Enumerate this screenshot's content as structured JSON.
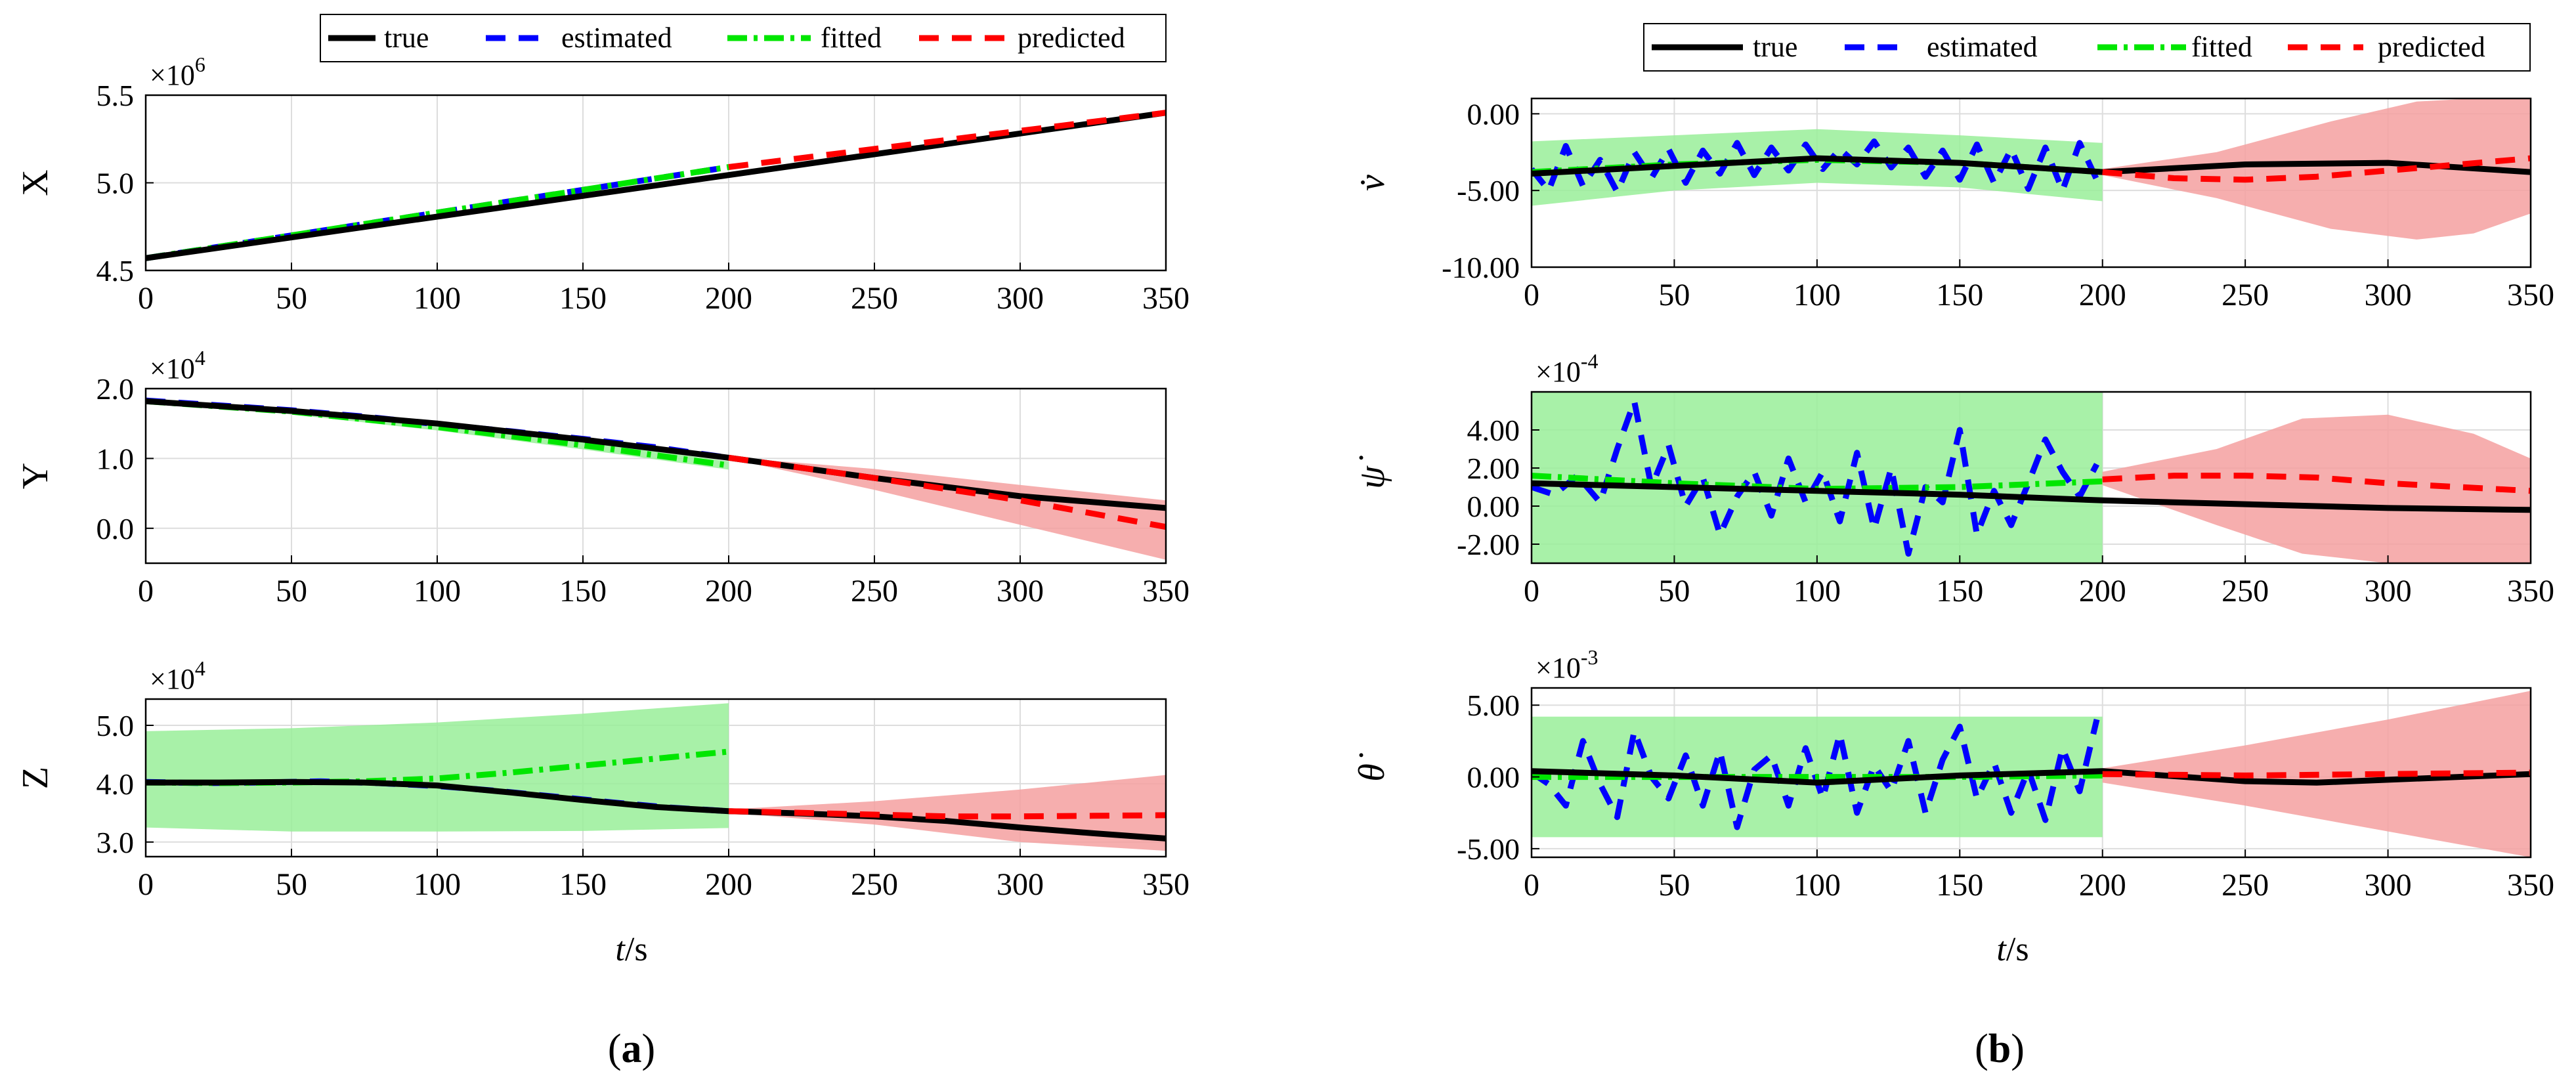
{
  "colors": {
    "true": "#000000",
    "estimated": "#0000ff",
    "fitted": "#00e600",
    "predicted": "#ff0000",
    "fitted_band": "#99ee99",
    "predicted_band": "#f5a0a0",
    "grid": "#dddddd"
  },
  "legend": {
    "true": "true",
    "estimated": "estimated",
    "fitted": "fitted",
    "predicted": "predicted"
  },
  "panel_labels": {
    "a": "a",
    "b": "b"
  },
  "xlabel_italic": "t",
  "xlabel_unit": "/s",
  "chart_data": [
    {
      "type": "line",
      "panel": "a",
      "ylabel": "X",
      "exponent_base": "×10",
      "exponent": "6",
      "xlim": [
        0,
        350
      ],
      "ylim": [
        4.5,
        5.5
      ],
      "xticks": [
        0,
        50,
        100,
        150,
        200,
        250,
        300,
        350
      ],
      "yticks": [
        4.5,
        5.0,
        5.5
      ],
      "ytick_labels": [
        "4.5",
        "5.0",
        "5.5"
      ],
      "series": [
        {
          "name": "true",
          "x": [
            0,
            350
          ],
          "y": [
            4.57,
            5.4
          ]
        },
        {
          "name": "estimated",
          "x": [
            0,
            200
          ],
          "y": [
            4.57,
            5.09
          ]
        },
        {
          "name": "fitted",
          "x": [
            0,
            200
          ],
          "y": [
            4.57,
            5.09
          ]
        },
        {
          "name": "predicted",
          "x": [
            200,
            350
          ],
          "y": [
            5.09,
            5.4
          ]
        }
      ]
    },
    {
      "type": "line",
      "panel": "a",
      "ylabel": "Y",
      "exponent_base": "×10",
      "exponent": "4",
      "xlim": [
        0,
        350
      ],
      "ylim": [
        -0.5,
        2.0
      ],
      "xticks": [
        0,
        50,
        100,
        150,
        200,
        250,
        300,
        350
      ],
      "yticks": [
        0.0,
        1.0,
        2.0
      ],
      "ytick_labels": [
        "0.0",
        "1.0",
        "2.0"
      ],
      "series": [
        {
          "name": "true",
          "x": [
            0,
            50,
            100,
            150,
            200,
            250,
            300,
            350
          ],
          "y": [
            1.82,
            1.68,
            1.5,
            1.27,
            1.01,
            0.72,
            0.46,
            0.29
          ]
        },
        {
          "name": "estimated",
          "x": [
            0,
            25,
            50,
            75,
            100,
            125,
            150,
            175,
            200
          ],
          "y": [
            1.83,
            1.76,
            1.69,
            1.6,
            1.49,
            1.39,
            1.28,
            1.16,
            1.01
          ]
        },
        {
          "name": "fitted",
          "x": [
            0,
            50,
            100,
            150,
            200
          ],
          "y": [
            1.82,
            1.67,
            1.45,
            1.19,
            0.9
          ]
        },
        {
          "name": "predicted",
          "x": [
            200,
            250,
            300,
            350
          ],
          "y": [
            1.01,
            0.72,
            0.4,
            0.02
          ]
        }
      ],
      "bands": [
        {
          "name": "fitted",
          "x": [
            0,
            50,
            100,
            150,
            200
          ],
          "lower": [
            1.8,
            1.63,
            1.4,
            1.13,
            0.84
          ],
          "upper": [
            1.85,
            1.71,
            1.5,
            1.25,
            0.96
          ]
        },
        {
          "name": "predicted",
          "x": [
            200,
            250,
            300,
            350
          ],
          "lower": [
            1.0,
            0.55,
            0.05,
            -0.45
          ],
          "upper": [
            1.02,
            0.85,
            0.62,
            0.4
          ]
        }
      ]
    },
    {
      "type": "line",
      "panel": "a",
      "ylabel": "Z",
      "exponent_base": "×10",
      "exponent": "4",
      "xlim": [
        0,
        350
      ],
      "ylim": [
        2.75,
        5.45
      ],
      "xticks": [
        0,
        50,
        100,
        150,
        200,
        250,
        300,
        350
      ],
      "yticks": [
        3.0,
        4.0,
        5.0
      ],
      "ytick_labels": [
        "3.0",
        "4.0",
        "5.0"
      ],
      "series": [
        {
          "name": "true",
          "x": [
            0,
            25,
            50,
            75,
            100,
            125,
            150,
            175,
            200,
            225,
            250,
            275,
            300,
            325,
            350
          ],
          "y": [
            4.02,
            4.02,
            4.03,
            4.02,
            3.97,
            3.85,
            3.72,
            3.6,
            3.53,
            3.49,
            3.44,
            3.36,
            3.25,
            3.15,
            3.06
          ]
        },
        {
          "name": "estimated",
          "x": [
            0,
            20,
            40,
            60,
            80,
            100,
            120,
            140,
            160,
            180,
            200
          ],
          "y": [
            4.03,
            4.01,
            4.02,
            4.04,
            4.01,
            3.96,
            3.88,
            3.78,
            3.68,
            3.59,
            3.53
          ]
        },
        {
          "name": "fitted",
          "x": [
            0,
            25,
            50,
            75,
            100,
            125,
            150,
            175,
            200
          ],
          "y": [
            4.02,
            4.01,
            4.02,
            4.04,
            4.09,
            4.19,
            4.31,
            4.43,
            4.55
          ]
        },
        {
          "name": "predicted",
          "x": [
            200,
            225,
            250,
            275,
            300,
            325,
            350
          ],
          "y": [
            3.53,
            3.5,
            3.47,
            3.44,
            3.44,
            3.45,
            3.46
          ]
        }
      ],
      "bands": [
        {
          "name": "fitted",
          "x": [
            0,
            50,
            100,
            150,
            200
          ],
          "lower": [
            3.25,
            3.18,
            3.18,
            3.19,
            3.24
          ],
          "upper": [
            4.9,
            4.95,
            5.05,
            5.2,
            5.38
          ]
        },
        {
          "name": "predicted",
          "x": [
            200,
            250,
            300,
            350
          ],
          "lower": [
            3.5,
            3.3,
            3.0,
            2.85
          ],
          "upper": [
            3.56,
            3.7,
            3.9,
            4.15
          ]
        }
      ]
    },
    {
      "type": "line",
      "panel": "b",
      "ylabel": "v̇",
      "xlim": [
        0,
        350
      ],
      "ylim": [
        -10.0,
        1.0
      ],
      "xticks": [
        0,
        50,
        100,
        150,
        200,
        250,
        300,
        350
      ],
      "yticks": [
        -10.0,
        -5.0,
        0.0
      ],
      "ytick_labels": [
        "-10.00",
        "-5.00",
        "0.00"
      ],
      "series": [
        {
          "name": "true",
          "x": [
            0,
            50,
            100,
            150,
            200,
            250,
            300,
            350
          ],
          "y": [
            -3.9,
            -3.4,
            -2.9,
            -3.2,
            -3.8,
            -3.3,
            -3.2,
            -3.8
          ]
        },
        {
          "name": "estimated",
          "x": [
            0,
            6,
            12,
            18,
            24,
            30,
            36,
            42,
            48,
            54,
            60,
            66,
            72,
            78,
            84,
            90,
            96,
            102,
            108,
            114,
            120,
            126,
            132,
            138,
            144,
            150,
            156,
            162,
            168,
            174,
            180,
            186,
            192,
            198
          ],
          "y": [
            -3.6,
            -5.0,
            -2.1,
            -4.7,
            -3.0,
            -5.1,
            -2.5,
            -4.2,
            -2.3,
            -4.5,
            -2.4,
            -3.9,
            -1.9,
            -4.0,
            -2.2,
            -3.7,
            -2.0,
            -3.6,
            -2.3,
            -3.3,
            -1.8,
            -3.5,
            -2.2,
            -4.1,
            -2.4,
            -4.3,
            -2.0,
            -4.5,
            -2.3,
            -4.9,
            -2.2,
            -5.0,
            -1.9,
            -4.3
          ]
        },
        {
          "name": "fitted",
          "x": [
            0,
            50,
            100,
            150,
            200
          ],
          "y": [
            -3.8,
            -3.3,
            -3.0,
            -3.2,
            -3.8
          ]
        },
        {
          "name": "predicted",
          "x": [
            200,
            225,
            250,
            275,
            300,
            325,
            350
          ],
          "y": [
            -3.8,
            -4.2,
            -4.3,
            -4.1,
            -3.7,
            -3.3,
            -2.9
          ]
        }
      ],
      "bands": [
        {
          "name": "fitted",
          "x": [
            0,
            50,
            100,
            150,
            200
          ],
          "lower": [
            -6.0,
            -5.0,
            -4.5,
            -4.8,
            -5.7
          ],
          "upper": [
            -1.8,
            -1.4,
            -1.0,
            -1.4,
            -1.9
          ]
        },
        {
          "name": "predicted",
          "x": [
            200,
            240,
            280,
            310,
            330,
            350
          ],
          "lower": [
            -4.0,
            -5.5,
            -7.5,
            -8.2,
            -7.8,
            -6.5
          ],
          "upper": [
            -3.6,
            -2.5,
            -0.5,
            0.8,
            1.0,
            1.0
          ]
        }
      ]
    },
    {
      "type": "line",
      "panel": "b",
      "ylabel": "ψ̇",
      "exponent_base": "×10",
      "exponent": "-4",
      "xlim": [
        0,
        350
      ],
      "ylim": [
        -3.0,
        6.0
      ],
      "xticks": [
        0,
        50,
        100,
        150,
        200,
        250,
        300,
        350
      ],
      "yticks": [
        -2.0,
        0.0,
        2.0,
        4.0
      ],
      "ytick_labels": [
        "-2.00",
        "0.00",
        "2.00",
        "4.00"
      ],
      "series": [
        {
          "name": "true",
          "x": [
            0,
            50,
            100,
            150,
            200,
            250,
            300,
            350
          ],
          "y": [
            1.2,
            1.0,
            0.8,
            0.6,
            0.3,
            0.1,
            -0.1,
            -0.2
          ]
        },
        {
          "name": "estimated",
          "x": [
            0,
            8,
            16,
            24,
            30,
            36,
            42,
            48,
            54,
            60,
            66,
            72,
            78,
            84,
            90,
            96,
            102,
            108,
            114,
            120,
            126,
            132,
            138,
            144,
            150,
            156,
            162,
            168,
            174,
            180,
            186,
            192,
            198
          ],
          "y": [
            1.0,
            0.6,
            1.6,
            0.2,
            3.0,
            5.5,
            1.0,
            3.2,
            0.0,
            1.5,
            -1.5,
            0.5,
            1.8,
            -0.5,
            2.5,
            0.2,
            1.8,
            -0.8,
            2.8,
            -1.2,
            2.0,
            -2.5,
            1.0,
            0.2,
            4.0,
            -1.5,
            0.8,
            -1.0,
            1.2,
            3.5,
            1.8,
            0.5,
            2.2
          ]
        },
        {
          "name": "fitted",
          "x": [
            0,
            50,
            100,
            150,
            200
          ],
          "y": [
            1.6,
            1.2,
            0.9,
            1.0,
            1.3
          ]
        },
        {
          "name": "predicted",
          "x": [
            200,
            225,
            250,
            275,
            300,
            325,
            350
          ],
          "y": [
            1.4,
            1.6,
            1.6,
            1.5,
            1.2,
            1.0,
            0.8
          ]
        }
      ],
      "bands": [
        {
          "name": "fitted",
          "x": [
            0,
            200
          ],
          "lower": [
            -3.0,
            -3.0
          ],
          "upper": [
            6.0,
            6.0
          ]
        },
        {
          "name": "predicted",
          "x": [
            200,
            240,
            270,
            300,
            330,
            350
          ],
          "lower": [
            1.1,
            -1.0,
            -2.5,
            -3.0,
            -3.0,
            -3.0
          ],
          "upper": [
            1.8,
            3.0,
            4.6,
            4.8,
            3.8,
            2.5
          ]
        }
      ]
    },
    {
      "type": "line",
      "panel": "b",
      "ylabel": "θ̇",
      "exponent_base": "×10",
      "exponent": "-3",
      "xlim": [
        0,
        350
      ],
      "ylim": [
        -5.6,
        6.2
      ],
      "xticks": [
        0,
        50,
        100,
        150,
        200,
        250,
        300,
        350
      ],
      "yticks": [
        -5.0,
        0.0,
        5.0
      ],
      "ytick_labels": [
        "-5.00",
        "0.00",
        "5.00"
      ],
      "series": [
        {
          "name": "true",
          "x": [
            0,
            50,
            100,
            150,
            200,
            250,
            275,
            300,
            350
          ],
          "y": [
            0.4,
            0.1,
            -0.4,
            0.1,
            0.4,
            -0.3,
            -0.4,
            -0.2,
            0.2
          ]
        },
        {
          "name": "estimated",
          "x": [
            0,
            6,
            12,
            18,
            24,
            30,
            36,
            42,
            48,
            54,
            60,
            66,
            72,
            78,
            84,
            90,
            96,
            102,
            108,
            114,
            120,
            126,
            132,
            138,
            144,
            150,
            156,
            162,
            168,
            174,
            180,
            186,
            192,
            198
          ],
          "y": [
            0.3,
            -0.5,
            -2.0,
            2.5,
            -0.5,
            -2.8,
            3.2,
            0.0,
            -1.5,
            1.5,
            -2.0,
            1.8,
            -3.5,
            0.5,
            1.5,
            -2.0,
            2.0,
            -1.5,
            3.0,
            -2.5,
            0.8,
            -1.0,
            2.5,
            -2.5,
            1.2,
            3.5,
            -1.5,
            1.0,
            -2.5,
            0.5,
            -3.0,
            2.0,
            -1.0,
            4.0
          ]
        },
        {
          "name": "fitted",
          "x": [
            0,
            50,
            100,
            150,
            200
          ],
          "y": [
            0.0,
            0.0,
            0.0,
            0.0,
            0.1
          ]
        },
        {
          "name": "predicted",
          "x": [
            200,
            250,
            300,
            350
          ],
          "y": [
            0.2,
            0.1,
            0.2,
            0.3
          ]
        }
      ],
      "bands": [
        {
          "name": "fitted",
          "x": [
            0,
            200
          ],
          "lower": [
            -4.2,
            -4.2
          ],
          "upper": [
            4.2,
            4.2
          ]
        },
        {
          "name": "predicted",
          "x": [
            200,
            250,
            300,
            350
          ],
          "lower": [
            -0.4,
            -2.0,
            -3.8,
            -5.6
          ],
          "upper": [
            0.6,
            2.2,
            4.0,
            6.0
          ]
        }
      ]
    }
  ]
}
